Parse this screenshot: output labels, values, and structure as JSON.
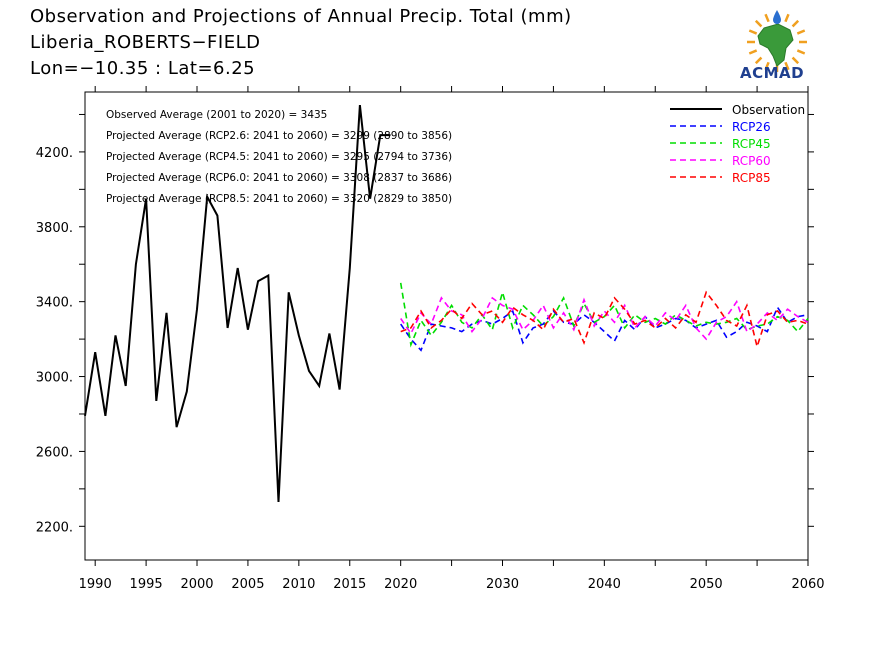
{
  "header": {
    "line1": "Observation and Projections of Annual Precip. Total (mm)",
    "line2": "Liberia_ROBERTS−FIELD",
    "line3": "Lon=−10.35 : Lat=6.25"
  },
  "logo": {
    "text": "ACMAD"
  },
  "annotations": [
    "Observed Average (2001 to 2020) = 3435",
    "Projected Average (RCP2.6: 2041 to 2060) = 3299 (2890 to 3856)",
    "Projected Average (RCP4.5: 2041 to 2060) = 3295 (2794 to 3736)",
    "Projected Average (RCP6.0: 2041 to 2060) = 3308 (2837 to 3686)",
    "Projected Average (RCP8.5: 2041 to 2060) = 3320 (2829 to 3850)"
  ],
  "chart_data": {
    "type": "line",
    "xlim": [
      1989,
      2060
    ],
    "ylim": [
      2020,
      4520
    ],
    "x_ticks": [
      1990,
      1995,
      2000,
      2005,
      2010,
      2015,
      2020,
      2030,
      2040,
      2050,
      2060
    ],
    "x_tick_labels": [
      "1990",
      "1995",
      "2000",
      "2005",
      "2010",
      "2015",
      "2020",
      "2030",
      "2040",
      "2050",
      "2060"
    ],
    "y_ticks": [
      2200,
      2600,
      3000,
      3400,
      3800,
      4200
    ],
    "y_tick_labels": [
      "2200.",
      "2600.",
      "3000.",
      "3400.",
      "3800.",
      "4200."
    ],
    "legend_position": "top-right",
    "observation": {
      "name": "Observation",
      "color": "#000000",
      "x": [
        1989,
        1990,
        1991,
        1992,
        1993,
        1994,
        1995,
        1996,
        1997,
        1998,
        1999,
        2000,
        2001,
        2002,
        2003,
        2004,
        2005,
        2006,
        2007,
        2008,
        2009,
        2010,
        2011,
        2012,
        2013,
        2014,
        2015,
        2016,
        2017,
        2018,
        2019
      ],
      "y": [
        2790,
        3130,
        2790,
        3220,
        2950,
        3600,
        3950,
        2870,
        3340,
        2730,
        2920,
        3360,
        3960,
        3860,
        3260,
        3580,
        3250,
        3510,
        3540,
        2330,
        3450,
        3220,
        3030,
        2950,
        3230,
        2930,
        3580,
        4450,
        3950,
        4290,
        4290
      ]
    },
    "series": [
      {
        "name": "RCP26",
        "color": "#0000ff",
        "x": [
          2020,
          2021,
          2022,
          2023,
          2024,
          2025,
          2026,
          2027,
          2028,
          2029,
          2030,
          2031,
          2032,
          2033,
          2034,
          2035,
          2036,
          2037,
          2038,
          2039,
          2040,
          2041,
          2042,
          2043,
          2044,
          2045,
          2046,
          2047,
          2048,
          2049,
          2050,
          2051,
          2052,
          2053,
          2054,
          2055,
          2056,
          2057,
          2058,
          2059,
          2060
        ],
        "y": [
          3280,
          3200,
          3140,
          3280,
          3270,
          3260,
          3240,
          3280,
          3300,
          3280,
          3310,
          3350,
          3180,
          3260,
          3280,
          3350,
          3290,
          3280,
          3330,
          3290,
          3240,
          3190,
          3300,
          3250,
          3320,
          3260,
          3280,
          3310,
          3300,
          3260,
          3280,
          3300,
          3210,
          3240,
          3290,
          3270,
          3240,
          3370,
          3290,
          3320,
          3330
        ]
      },
      {
        "name": "RCP45",
        "color": "#00dd00",
        "x": [
          2020,
          2021,
          2022,
          2023,
          2024,
          2025,
          2026,
          2027,
          2028,
          2029,
          2030,
          2031,
          2032,
          2033,
          2034,
          2035,
          2036,
          2037,
          2038,
          2039,
          2040,
          2041,
          2042,
          2043,
          2044,
          2045,
          2046,
          2047,
          2048,
          2049,
          2050,
          2051,
          2052,
          2053,
          2054,
          2055,
          2056,
          2057,
          2058,
          2059,
          2060
        ],
        "y": [
          3500,
          3170,
          3300,
          3220,
          3290,
          3380,
          3290,
          3260,
          3330,
          3250,
          3450,
          3260,
          3380,
          3330,
          3270,
          3320,
          3420,
          3270,
          3390,
          3290,
          3320,
          3380,
          3260,
          3330,
          3290,
          3310,
          3280,
          3330,
          3300,
          3270,
          3290,
          3280,
          3290,
          3310,
          3250,
          3270,
          3280,
          3320,
          3300,
          3240,
          3310
        ]
      },
      {
        "name": "RCP60",
        "color": "#ff00ff",
        "x": [
          2020,
          2021,
          2022,
          2023,
          2024,
          2025,
          2026,
          2027,
          2028,
          2029,
          2030,
          2031,
          2032,
          2033,
          2034,
          2035,
          2036,
          2037,
          2038,
          2039,
          2040,
          2041,
          2042,
          2043,
          2044,
          2045,
          2046,
          2047,
          2048,
          2049,
          2050,
          2051,
          2052,
          2053,
          2054,
          2055,
          2056,
          2057,
          2058,
          2059,
          2060
        ],
        "y": [
          3310,
          3230,
          3340,
          3280,
          3420,
          3350,
          3330,
          3240,
          3310,
          3420,
          3380,
          3360,
          3250,
          3300,
          3380,
          3260,
          3340,
          3250,
          3410,
          3270,
          3350,
          3290,
          3380,
          3260,
          3320,
          3270,
          3340,
          3300,
          3380,
          3260,
          3200,
          3290,
          3320,
          3400,
          3240,
          3280,
          3340,
          3300,
          3360,
          3320,
          3290
        ]
      },
      {
        "name": "RCP85",
        "color": "#ff0000",
        "x": [
          2020,
          2021,
          2022,
          2023,
          2024,
          2025,
          2026,
          2027,
          2028,
          2029,
          2030,
          2031,
          2032,
          2033,
          2034,
          2035,
          2036,
          2037,
          2038,
          2039,
          2040,
          2041,
          2042,
          2043,
          2044,
          2045,
          2046,
          2047,
          2048,
          2049,
          2050,
          2051,
          2052,
          2053,
          2054,
          2055,
          2056,
          2057,
          2058,
          2059,
          2060
        ],
        "y": [
          3240,
          3260,
          3350,
          3260,
          3300,
          3360,
          3310,
          3390,
          3330,
          3350,
          3290,
          3370,
          3330,
          3300,
          3250,
          3360,
          3290,
          3310,
          3180,
          3340,
          3310,
          3420,
          3360,
          3280,
          3300,
          3260,
          3310,
          3260,
          3330,
          3290,
          3450,
          3380,
          3300,
          3270,
          3380,
          3160,
          3330,
          3350,
          3290,
          3300,
          3280
        ]
      }
    ]
  }
}
